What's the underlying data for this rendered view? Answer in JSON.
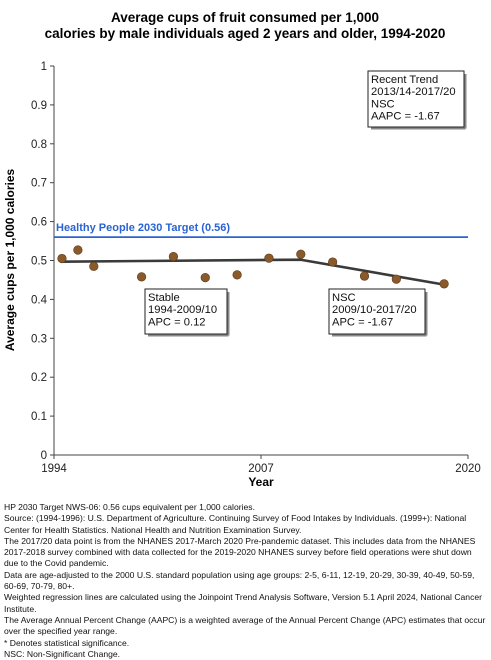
{
  "chart_data": {
    "type": "scatter",
    "title_lines": [
      "Average cups of fruit consumed per 1,000",
      "calories by male individuals aged 2 years and older, 1994-2020"
    ],
    "xlabel": "Year",
    "ylabel": "Average cups per 1,000 calories",
    "xlim": [
      1994,
      2020
    ],
    "ylim": [
      0,
      1
    ],
    "x_ticks": [
      1994,
      2007,
      2020
    ],
    "y_ticks": [
      0,
      0.1,
      0.2,
      0.3,
      0.4,
      0.5,
      0.6,
      0.7,
      0.8,
      0.9,
      1
    ],
    "y_tick_labels": [
      "0",
      "0.1",
      "0.2",
      "0.3",
      "0.4",
      "0.5",
      "0.6",
      "0.7",
      "0.8",
      "0.9",
      "1"
    ],
    "x_tick_labels": [
      "1994",
      "2007",
      "2020"
    ],
    "grid": false,
    "points": {
      "x": [
        1994.5,
        1995.5,
        1996.5,
        1999.5,
        2001.5,
        2003.5,
        2005.5,
        2007.5,
        2009.5,
        2011.5,
        2013.5,
        2015.5,
        2018.5
      ],
      "y": [
        0.505,
        0.527,
        0.485,
        0.458,
        0.51,
        0.456,
        0.463,
        0.506,
        0.516,
        0.496,
        0.46,
        0.452,
        0.44
      ],
      "color": "#8B5A2B"
    },
    "trend": {
      "x": [
        1994.5,
        2009.5,
        2018.5
      ],
      "y": [
        0.497,
        0.502,
        0.438
      ],
      "color": "#3a3a3a"
    },
    "target": {
      "value": 0.56,
      "label": "Healthy People 2030 Target (0.56)",
      "color": "#2a63d4"
    },
    "annotations": [
      {
        "id": "recent",
        "lines": [
          "Recent Trend",
          "2013/14-2017/20",
          "NSC",
          "AAPC = -1.67"
        ]
      },
      {
        "id": "stable",
        "lines": [
          "Stable",
          "1994-2009/10",
          "APC =  0.12"
        ]
      },
      {
        "id": "nsc",
        "lines": [
          "NSC",
          "2009/10-2017/20",
          "APC = -1.67"
        ]
      }
    ]
  },
  "footnotes": [
    "HP 2030 Target NWS-06: 0.56 cups equivalent per 1,000 calories.",
    "Source: (1994-1996): U.S. Department of Agriculture. Continuing Survey of Food Intakes by Individuals. (1999+): National Center for Health Statistics. National Health and Nutrition Examination Survey.",
    "The 2017/20 data point is from the NHANES 2017-March 2020 Pre-pandemic dataset. This includes data from the NHANES 2017-2018 survey combined with data collected for the 2019-2020 NHANES survey before field operations were shut down due to the Covid pandemic.",
    "Data are age-adjusted to the 2000 U.S. standard population using age groups: 2-5, 6-11, 12-19, 20-29, 30-39, 40-49, 50-59, 60-69, 70-79, 80+.",
    "Weighted regression lines are calculated using the Joinpoint Trend Analysis Software, Version 5.1 April 2024, National Cancer Institute.",
    "The Average Annual Percent Change (AAPC) is a weighted average of the Annual Percent Change (APC) estimates that occur over the specified year range.",
    "* Denotes statistical significance.",
    "NSC: Non-Significant Change."
  ]
}
